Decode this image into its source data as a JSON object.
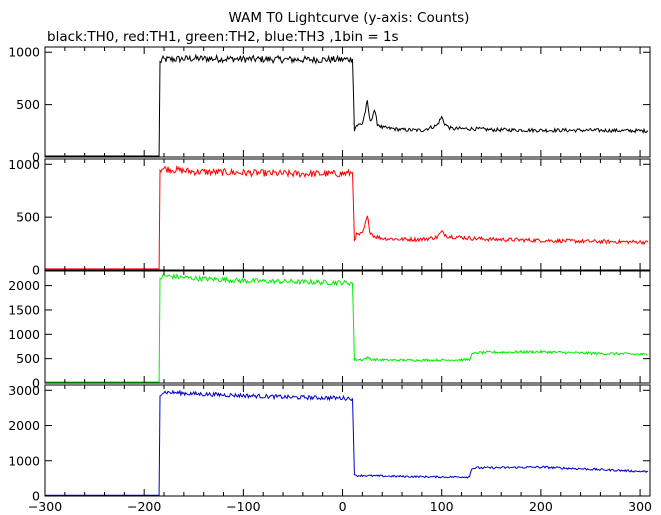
{
  "chart_data": {
    "type": "line",
    "title": "WAM T0 Lightcurve (y-axis: Counts)",
    "subtitle": "black:TH0, red:TH1, green:TH2, blue:TH3 ,1bin = 1s",
    "xlabel": "",
    "ylabel": "",
    "xlim": [
      -300,
      310
    ],
    "x_ticks": [
      "-300",
      "-200",
      "-100",
      "0",
      "100",
      "200",
      "300"
    ],
    "grid": false,
    "legend": "none",
    "panels": [
      {
        "name": "TH0",
        "color": "#000000",
        "ylim": [
          0,
          1050
        ],
        "y_ticks": [
          "0",
          "500",
          "1000"
        ],
        "x": [
          -300,
          -185,
          -184,
          -182,
          -150,
          -100,
          -50,
          0,
          10,
          12,
          14,
          20,
          25,
          28,
          32,
          35,
          40,
          50,
          60,
          80,
          95,
          100,
          103,
          106,
          110,
          130,
          150,
          200,
          250,
          300,
          308
        ],
        "y": [
          10,
          10,
          900,
          930,
          940,
          935,
          930,
          930,
          935,
          260,
          300,
          320,
          520,
          330,
          450,
          320,
          280,
          270,
          260,
          255,
          300,
          380,
          320,
          290,
          270,
          270,
          260,
          255,
          255,
          250,
          250
        ]
      },
      {
        "name": "TH1",
        "color": "#ff0000",
        "ylim": [
          0,
          1050
        ],
        "y_ticks": [
          "0",
          "500",
          "1000"
        ],
        "x": [
          -300,
          -185,
          -184,
          -182,
          -150,
          -100,
          -50,
          0,
          10,
          12,
          14,
          20,
          25,
          28,
          32,
          40,
          60,
          80,
          95,
          100,
          106,
          130,
          150,
          200,
          250,
          300,
          308
        ],
        "y": [
          10,
          10,
          950,
          960,
          930,
          920,
          910,
          910,
          920,
          290,
          330,
          340,
          500,
          360,
          320,
          300,
          290,
          290,
          310,
          360,
          320,
          300,
          290,
          280,
          270,
          265,
          260
        ]
      },
      {
        "name": "TH2",
        "color": "#00ee00",
        "ylim": [
          0,
          2300
        ],
        "y_ticks": [
          "0",
          "500",
          "1000",
          "1500",
          "2000"
        ],
        "x": [
          -300,
          -185,
          -184,
          -180,
          -150,
          -100,
          -50,
          0,
          10,
          12,
          20,
          25,
          30,
          50,
          100,
          128,
          130,
          135,
          150,
          200,
          250,
          300,
          308
        ],
        "y": [
          20,
          20,
          2150,
          2200,
          2150,
          2100,
          2080,
          2060,
          2050,
          480,
          480,
          520,
          480,
          470,
          470,
          480,
          580,
          620,
          630,
          640,
          610,
          590,
          580
        ]
      },
      {
        "name": "TH3",
        "color": "#0000cc",
        "ylim": [
          0,
          3150
        ],
        "y_ticks": [
          "0",
          "1000",
          "2000",
          "3000"
        ],
        "x": [
          -300,
          -185,
          -184,
          -180,
          -150,
          -100,
          -50,
          0,
          10,
          12,
          20,
          50,
          100,
          128,
          130,
          135,
          150,
          200,
          250,
          300,
          308
        ],
        "y": [
          20,
          20,
          2900,
          2950,
          2900,
          2850,
          2800,
          2780,
          2770,
          580,
          580,
          560,
          540,
          540,
          780,
          800,
          800,
          820,
          760,
          700,
          690
        ]
      }
    ]
  }
}
